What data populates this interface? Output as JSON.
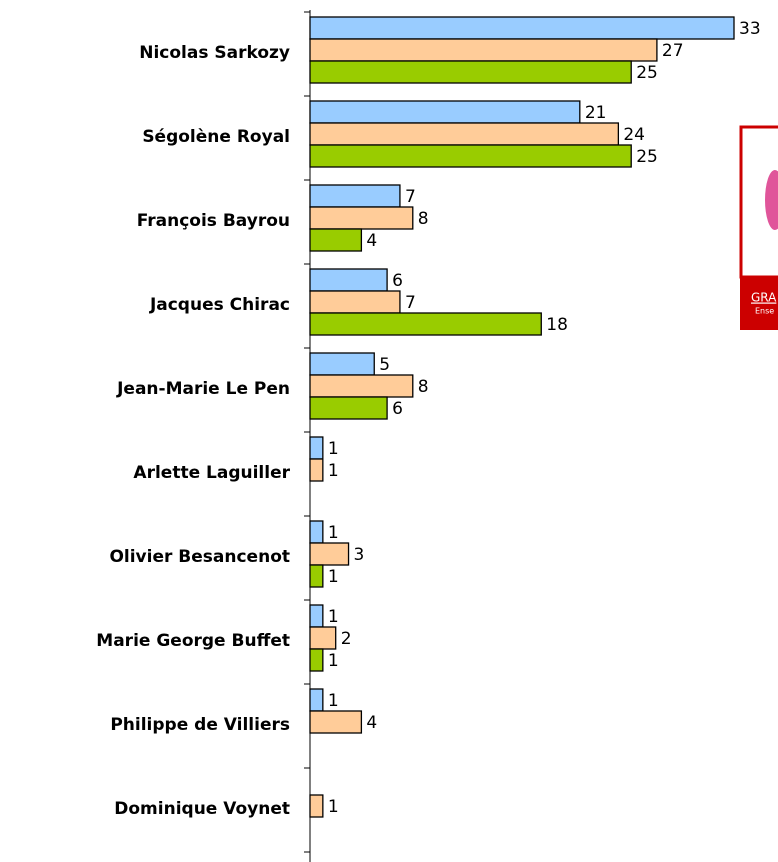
{
  "chart_data": {
    "type": "bar",
    "orientation": "horizontal",
    "categories": [
      "Nicolas Sarkozy",
      "Ségolène Royal",
      "François Bayrou",
      "Jacques Chirac",
      "Jean-Marie Le Pen",
      "Arlette Laguiller",
      "Olivier Besancenot",
      "Marie George Buffet",
      "Philippe de Villiers",
      "Dominique Voynet"
    ],
    "series": [
      {
        "color": "#99ccff",
        "values": [
          33,
          21,
          7,
          6,
          5,
          1,
          1,
          1,
          1,
          null
        ]
      },
      {
        "color": "#ffcc99",
        "values": [
          27,
          24,
          8,
          7,
          8,
          1,
          3,
          2,
          4,
          1
        ]
      },
      {
        "color": "#99cc00",
        "values": [
          25,
          25,
          4,
          18,
          6,
          null,
          1,
          1,
          null,
          null
        ]
      }
    ]
  },
  "ad": {
    "title": "GRA",
    "subtitle": "Ense"
  }
}
